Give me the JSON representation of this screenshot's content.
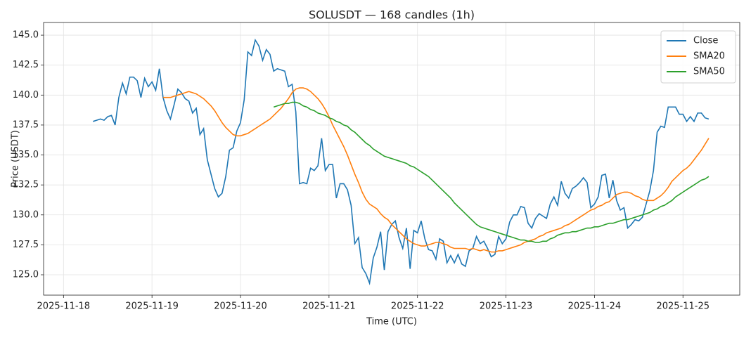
{
  "chart_data": {
    "type": "line",
    "title": "SOLUSDT — 168 candles (1h)",
    "x_label": "Time (UTC)",
    "y_label": "Price (USDT)",
    "xlim": [
      -13.4,
      175.4
    ],
    "xticks": [
      {
        "value": -8,
        "label": "2025-11-18"
      },
      {
        "value": 16,
        "label": "2025-11-19"
      },
      {
        "value": 40,
        "label": "2025-11-20"
      },
      {
        "value": 64,
        "label": "2025-11-21"
      },
      {
        "value": 88,
        "label": "2025-11-22"
      },
      {
        "value": 112,
        "label": "2025-11-23"
      },
      {
        "value": 136,
        "label": "2025-11-24"
      },
      {
        "value": 160,
        "label": "2025-11-25"
      }
    ],
    "ylim": [
      123.3,
      146.06
    ],
    "yticks": [
      {
        "value": 125,
        "label": "125.0"
      },
      {
        "value": 127.5,
        "label": "127.5"
      },
      {
        "value": 130,
        "label": "130.0"
      },
      {
        "value": 132.5,
        "label": "132.5"
      },
      {
        "value": 135,
        "label": "135.0"
      },
      {
        "value": 137.5,
        "label": "137.5"
      },
      {
        "value": 140,
        "label": "140.0"
      },
      {
        "value": 142.5,
        "label": "142.5"
      },
      {
        "value": 145,
        "label": "145.0"
      }
    ],
    "grid": true,
    "legend": "upper right",
    "series": [
      {
        "name": "Close",
        "color": "#1f77b4",
        "values": [
          137.8,
          137.9,
          138.0,
          137.9,
          138.2,
          138.3,
          137.5,
          139.8,
          141.0,
          140.1,
          141.5,
          141.5,
          141.2,
          139.8,
          141.4,
          140.7,
          141.1,
          140.4,
          142.2,
          139.8,
          138.7,
          138.0,
          139.2,
          140.5,
          140.2,
          139.7,
          139.5,
          138.5,
          138.9,
          136.7,
          137.2,
          134.6,
          133.4,
          132.2,
          131.5,
          131.8,
          133.2,
          135.4,
          135.6,
          137.0,
          137.7,
          139.6,
          143.6,
          143.3,
          144.6,
          144.1,
          142.9,
          143.8,
          143.4,
          142.0,
          142.2,
          142.1,
          142.0,
          140.7,
          140.9,
          138.6,
          132.6,
          132.7,
          132.6,
          133.9,
          133.7,
          134.1,
          136.4,
          133.7,
          134.2,
          134.2,
          131.4,
          132.6,
          132.6,
          132.1,
          130.8,
          127.6,
          128.1,
          125.6,
          125.1,
          124.3,
          126.4,
          127.3,
          128.6,
          125.4,
          128.6,
          129.2,
          129.5,
          128.1,
          127.2,
          128.9,
          125.5,
          128.7,
          128.5,
          129.5,
          128.0,
          127.1,
          127.0,
          126.3,
          128.0,
          127.8,
          126.0,
          126.6,
          126.0,
          126.7,
          125.9,
          125.7,
          127.0,
          127.2,
          128.2,
          127.6,
          127.8,
          127.2,
          126.5,
          126.7,
          128.2,
          127.6,
          128.0,
          129.4,
          130.0,
          130.0,
          130.7,
          130.6,
          129.3,
          128.9,
          129.7,
          130.1,
          129.9,
          129.7,
          130.9,
          131.5,
          130.8,
          132.8,
          131.8,
          131.4,
          132.2,
          132.4,
          132.7,
          133.1,
          132.7,
          130.6,
          130.9,
          131.5,
          133.3,
          133.4,
          131.4,
          132.9,
          131.2,
          130.4,
          130.6,
          128.9,
          129.2,
          129.6,
          129.5,
          129.8,
          130.9,
          132.0,
          133.7,
          136.9,
          137.4,
          137.3,
          139.0,
          139.0,
          139.0,
          138.4,
          138.4,
          137.8,
          138.2,
          137.8,
          138.5,
          138.5,
          138.1,
          138.0
        ]
      },
      {
        "name": "SMA20",
        "color": "#ff7f0e",
        "values": [
          null,
          null,
          null,
          null,
          null,
          null,
          null,
          null,
          null,
          null,
          null,
          null,
          null,
          null,
          null,
          null,
          null,
          null,
          null,
          139.8,
          139.8,
          139.8,
          139.9,
          140.0,
          140.1,
          140.2,
          140.3,
          140.2,
          140.1,
          139.9,
          139.7,
          139.4,
          139.1,
          138.7,
          138.2,
          137.7,
          137.3,
          137.0,
          136.7,
          136.6,
          136.6,
          136.7,
          136.8,
          137.0,
          137.2,
          137.4,
          137.6,
          137.8,
          138.0,
          138.3,
          138.6,
          138.9,
          139.3,
          139.7,
          140.2,
          140.5,
          140.6,
          140.6,
          140.5,
          140.3,
          140.0,
          139.7,
          139.3,
          138.8,
          138.2,
          137.5,
          136.9,
          136.3,
          135.7,
          135.0,
          134.2,
          133.4,
          132.7,
          131.9,
          131.3,
          130.9,
          130.7,
          130.5,
          130.1,
          129.8,
          129.6,
          129.2,
          128.9,
          128.6,
          128.3,
          128.0,
          127.8,
          127.6,
          127.5,
          127.4,
          127.4,
          127.5,
          127.6,
          127.7,
          127.7,
          127.6,
          127.5,
          127.3,
          127.2,
          127.2,
          127.2,
          127.2,
          127.1,
          127.2,
          127.1,
          127.0,
          127.1,
          127.0,
          126.9,
          126.9,
          127.0,
          127.0,
          127.1,
          127.2,
          127.3,
          127.4,
          127.5,
          127.7,
          127.8,
          127.9,
          128.0,
          128.2,
          128.3,
          128.5,
          128.6,
          128.7,
          128.8,
          128.9,
          129.1,
          129.2,
          129.4,
          129.6,
          129.8,
          130.0,
          130.2,
          130.4,
          130.5,
          130.7,
          130.8,
          131.0,
          131.1,
          131.4,
          131.7,
          131.8,
          131.9,
          131.9,
          131.8,
          131.6,
          131.5,
          131.3,
          131.2,
          131.2,
          131.2,
          131.4,
          131.6,
          131.9,
          132.3,
          132.8,
          133.1,
          133.4,
          133.7,
          133.9,
          134.2,
          134.6,
          135.0,
          135.4,
          135.9,
          136.4
        ]
      },
      {
        "name": "SMA50",
        "color": "#2ca02c",
        "values": [
          null,
          null,
          null,
          null,
          null,
          null,
          null,
          null,
          null,
          null,
          null,
          null,
          null,
          null,
          null,
          null,
          null,
          null,
          null,
          null,
          null,
          null,
          null,
          null,
          null,
          null,
          null,
          null,
          null,
          null,
          null,
          null,
          null,
          null,
          null,
          null,
          null,
          null,
          null,
          null,
          null,
          null,
          null,
          null,
          null,
          null,
          null,
          null,
          null,
          139.0,
          139.1,
          139.2,
          139.3,
          139.3,
          139.4,
          139.4,
          139.3,
          139.1,
          139.0,
          138.8,
          138.7,
          138.5,
          138.4,
          138.3,
          138.1,
          138.0,
          137.8,
          137.7,
          137.5,
          137.4,
          137.1,
          136.9,
          136.6,
          136.3,
          136.0,
          135.8,
          135.5,
          135.3,
          135.1,
          134.9,
          134.8,
          134.7,
          134.6,
          134.5,
          134.4,
          134.3,
          134.1,
          134.0,
          133.8,
          133.6,
          133.4,
          133.2,
          132.9,
          132.6,
          132.3,
          132.0,
          131.7,
          131.4,
          131.0,
          130.7,
          130.4,
          130.1,
          129.8,
          129.5,
          129.2,
          129.0,
          128.9,
          128.8,
          128.7,
          128.6,
          128.5,
          128.4,
          128.3,
          128.2,
          128.1,
          128.0,
          127.9,
          127.9,
          127.8,
          127.8,
          127.7,
          127.7,
          127.8,
          127.8,
          128.0,
          128.1,
          128.3,
          128.4,
          128.5,
          128.5,
          128.6,
          128.6,
          128.7,
          128.8,
          128.9,
          128.9,
          129.0,
          129.0,
          129.1,
          129.2,
          129.3,
          129.3,
          129.4,
          129.5,
          129.6,
          129.6,
          129.7,
          129.8,
          129.9,
          130.0,
          130.1,
          130.2,
          130.4,
          130.5,
          130.7,
          130.8,
          131.0,
          131.2,
          131.5,
          131.7,
          131.9,
          132.1,
          132.3,
          132.5,
          132.7,
          132.9,
          133.0,
          133.2
        ]
      }
    ]
  }
}
